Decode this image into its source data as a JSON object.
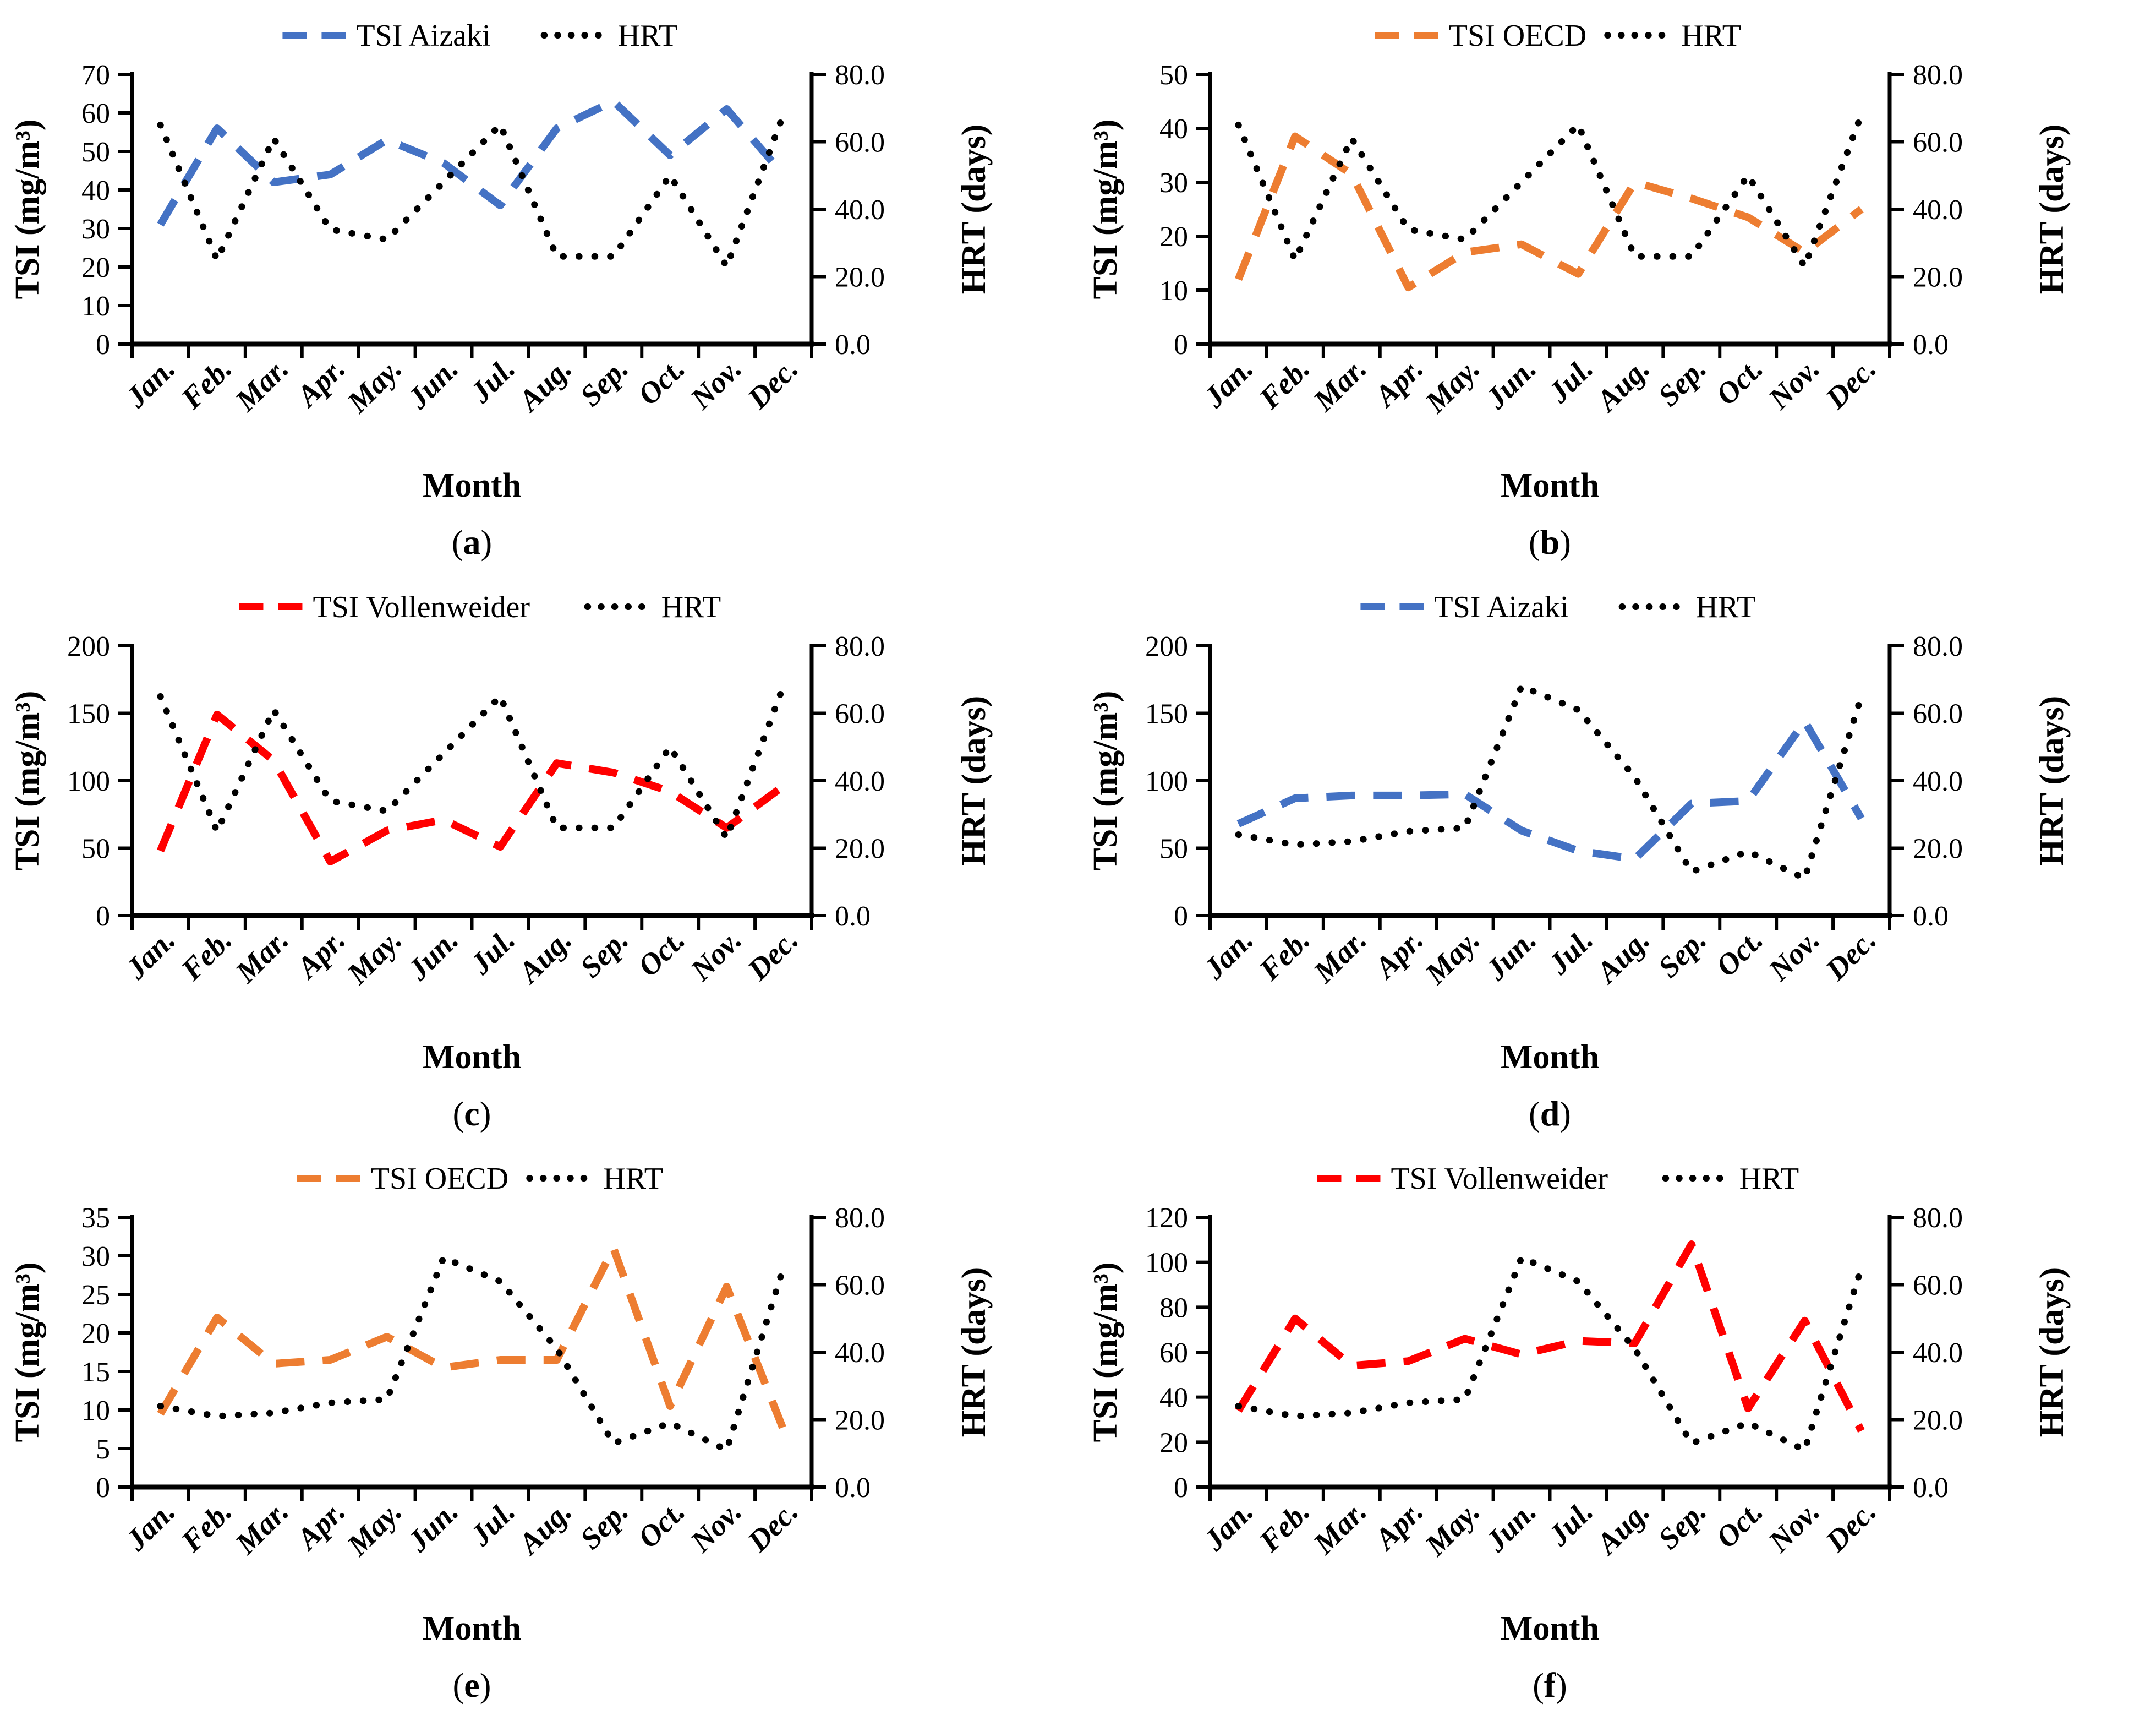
{
  "figure": {
    "background": "#ffffff",
    "columns": 2,
    "rows": 3
  },
  "colors": {
    "tsi_aizaki": "#4472C4",
    "tsi_oecd": "#ED7D31",
    "tsi_vollenweider": "#FF0000",
    "hrt": "#000000"
  },
  "chart_data": [
    {
      "panel_letter": "a",
      "type": "line",
      "categories": [
        "Jan.",
        "Feb.",
        "Mar.",
        "Apr.",
        "May.",
        "Jun.",
        "Jul.",
        "Aug.",
        "Sep.",
        "Oct.",
        "Nov.",
        "Dec."
      ],
      "xlabel": "Month",
      "ylabel_left": "TSI (mg/m³)",
      "ylabel_right": "HRT (days)",
      "ylim_left": [
        0,
        70
      ],
      "ytick_step_left": 10,
      "ytick_format_left": "int",
      "ylim_right": [
        0,
        80
      ],
      "ytick_step_right": 20,
      "ytick_format_right": "1dp",
      "grid": false,
      "legend_position": "top",
      "series": [
        {
          "name": "TSI Aizaki",
          "axis": "left",
          "style": "dashed",
          "color": "#4472C4",
          "values": [
            31,
            56,
            42,
            44,
            53,
            47,
            36,
            56,
            63,
            49,
            61,
            44
          ]
        },
        {
          "name": "HRT",
          "axis": "right",
          "style": "dotted",
          "color": "#000000",
          "values": [
            65,
            25,
            61,
            34,
            31,
            48,
            65,
            26,
            26,
            50,
            23,
            68
          ]
        }
      ]
    },
    {
      "panel_letter": "b",
      "type": "line",
      "categories": [
        "Jan.",
        "Feb.",
        "Mar.",
        "Apr.",
        "May.",
        "Jun.",
        "Jul.",
        "Aug.",
        "Sep.",
        "Oct.",
        "Nov.",
        "Dec."
      ],
      "xlabel": "Month",
      "ylabel_left": "TSI (mg/m³)",
      "ylabel_right": "HRT (days)",
      "ylim_left": [
        0,
        50
      ],
      "ytick_step_left": 10,
      "ytick_format_left": "int",
      "ylim_right": [
        0,
        80
      ],
      "ytick_step_right": 20,
      "ytick_format_right": "1dp",
      "grid": false,
      "legend_position": "top",
      "series": [
        {
          "name": "TSI OECD",
          "axis": "left",
          "style": "dashed",
          "color": "#ED7D31",
          "values": [
            12,
            38.5,
            31.5,
            10.5,
            17,
            18.5,
            13,
            30,
            27,
            23.5,
            17,
            25
          ]
        },
        {
          "name": "HRT",
          "axis": "right",
          "style": "dotted",
          "color": "#000000",
          "values": [
            65,
            25,
            61,
            34,
            31,
            48,
            65,
            26,
            26,
            50,
            23,
            68
          ]
        }
      ]
    },
    {
      "panel_letter": "c",
      "type": "line",
      "categories": [
        "Jan.",
        "Feb.",
        "Mar.",
        "Apr.",
        "May.",
        "Jun.",
        "Jul.",
        "Aug.",
        "Sep.",
        "Oct.",
        "Nov.",
        "Dec."
      ],
      "xlabel": "Month",
      "ylabel_left": "TSI (mg/m³)",
      "ylabel_right": "HRT (days)",
      "ylim_left": [
        0,
        200
      ],
      "ytick_step_left": 50,
      "ytick_format_left": "int",
      "ylim_right": [
        0,
        80
      ],
      "ytick_step_right": 20,
      "ytick_format_right": "1dp",
      "grid": false,
      "legend_position": "top",
      "series": [
        {
          "name": "TSI Vollenweider",
          "axis": "left",
          "style": "dashed",
          "color": "#FF0000",
          "values": [
            48,
            149,
            115,
            40,
            63,
            71,
            51,
            113,
            106,
            92,
            65,
            96
          ]
        },
        {
          "name": "HRT",
          "axis": "right",
          "style": "dotted",
          "color": "#000000",
          "values": [
            65,
            25,
            61,
            34,
            31,
            48,
            65,
            26,
            26,
            50,
            23,
            68
          ]
        }
      ]
    },
    {
      "panel_letter": "d",
      "type": "line",
      "categories": [
        "Jan.",
        "Feb.",
        "Mar.",
        "Apr.",
        "May.",
        "Jun.",
        "Jul.",
        "Aug.",
        "Sep.",
        "Oct.",
        "Nov.",
        "Dec."
      ],
      "xlabel": "Month",
      "ylabel_left": "TSI (mg/m³)",
      "ylabel_right": "HRT (days)",
      "ylim_left": [
        0,
        200
      ],
      "ytick_step_left": 50,
      "ytick_format_left": "int",
      "ylim_right": [
        0,
        80
      ],
      "ytick_step_right": 20,
      "ytick_format_right": "1dp",
      "grid": false,
      "legend_position": "top",
      "series": [
        {
          "name": "TSI Aizaki",
          "axis": "left",
          "style": "dashed",
          "color": "#4472C4",
          "values": [
            68,
            87,
            89,
            89,
            90,
            63,
            48,
            42,
            83,
            85,
            144,
            72
          ]
        },
        {
          "name": "HRT",
          "axis": "right",
          "style": "dotted",
          "color": "#000000",
          "values": [
            24,
            21,
            22,
            25,
            26,
            68,
            61,
            41,
            13,
            19,
            11,
            65
          ]
        }
      ]
    },
    {
      "panel_letter": "e",
      "type": "line",
      "categories": [
        "Jan.",
        "Feb.",
        "Mar.",
        "Apr.",
        "May.",
        "Jun.",
        "Jul.",
        "Aug.",
        "Sep.",
        "Oct.",
        "Nov.",
        "Dec."
      ],
      "xlabel": "Month",
      "ylabel_left": "TSI (mg/m³)",
      "ylabel_right": "HRT (days)",
      "ylim_left": [
        0,
        35
      ],
      "ytick_step_left": 5,
      "ytick_format_left": "int",
      "ylim_right": [
        0,
        80
      ],
      "ytick_step_right": 20,
      "ytick_format_right": "1dp",
      "grid": false,
      "legend_position": "top",
      "series": [
        {
          "name": "TSI OECD",
          "axis": "left",
          "style": "dashed",
          "color": "#ED7D31",
          "values": [
            9.5,
            22,
            16,
            16.5,
            19.5,
            15.5,
            16.5,
            16.5,
            31,
            10.5,
            26,
            7.5
          ]
        },
        {
          "name": "HRT",
          "axis": "right",
          "style": "dotted",
          "color": "#000000",
          "values": [
            24,
            21,
            22,
            25,
            26,
            68,
            61,
            41,
            13,
            19,
            11,
            65
          ]
        }
      ]
    },
    {
      "panel_letter": "f",
      "type": "line",
      "categories": [
        "Jan.",
        "Feb.",
        "Mar.",
        "Apr.",
        "May.",
        "Jun.",
        "Jul.",
        "Aug.",
        "Sep.",
        "Oct.",
        "Nov.",
        "Dec."
      ],
      "xlabel": "Month",
      "ylabel_left": "TSI (mg/m³)",
      "ylabel_right": "HRT (days)",
      "ylim_left": [
        0,
        120
      ],
      "ytick_step_left": 20,
      "ytick_format_left": "int",
      "ylim_right": [
        0,
        80
      ],
      "ytick_step_right": 20,
      "ytick_format_right": "1dp",
      "grid": false,
      "legend_position": "top",
      "series": [
        {
          "name": "TSI Vollenweider",
          "axis": "left",
          "style": "dashed",
          "color": "#FF0000",
          "values": [
            34,
            75,
            54,
            56,
            66,
            59,
            65,
            64,
            108,
            35,
            74,
            25
          ]
        },
        {
          "name": "HRT",
          "axis": "right",
          "style": "dotted",
          "color": "#000000",
          "values": [
            24,
            21,
            22,
            25,
            26,
            68,
            61,
            41,
            13,
            19,
            11,
            65
          ]
        }
      ]
    }
  ]
}
